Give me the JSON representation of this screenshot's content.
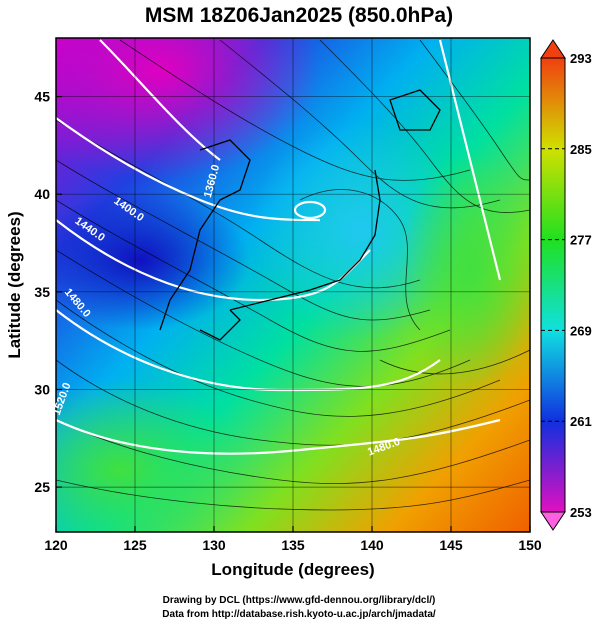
{
  "chart_data": {
    "type": "map",
    "title": "MSM 18Z06Jan2025 (850.0hPa)",
    "x_label": "Longitude (degrees)",
    "y_label": "Latitude  (degrees)",
    "xlim": [
      120,
      150
    ],
    "ylim": [
      22.7,
      48.0
    ],
    "xticks": [
      120,
      125,
      130,
      135,
      140,
      145,
      150
    ],
    "yticks": [
      25,
      30,
      35,
      40,
      45
    ],
    "grid": true,
    "colorbar": {
      "lim": [
        253,
        293
      ],
      "ticks": [
        253,
        261,
        269,
        277,
        285,
        293
      ]
    },
    "contour_labels": [
      "1400.0",
      "1360.0",
      "1440.0",
      "1480.0",
      "1520.0",
      "1480.0"
    ],
    "footer": [
      "Drawing by DCL (https://www.gfd-dennou.org/library/dcl/)",
      "Data from http://database.rish.kyoto-u.ac.jp/arch/jmadata/"
    ]
  }
}
